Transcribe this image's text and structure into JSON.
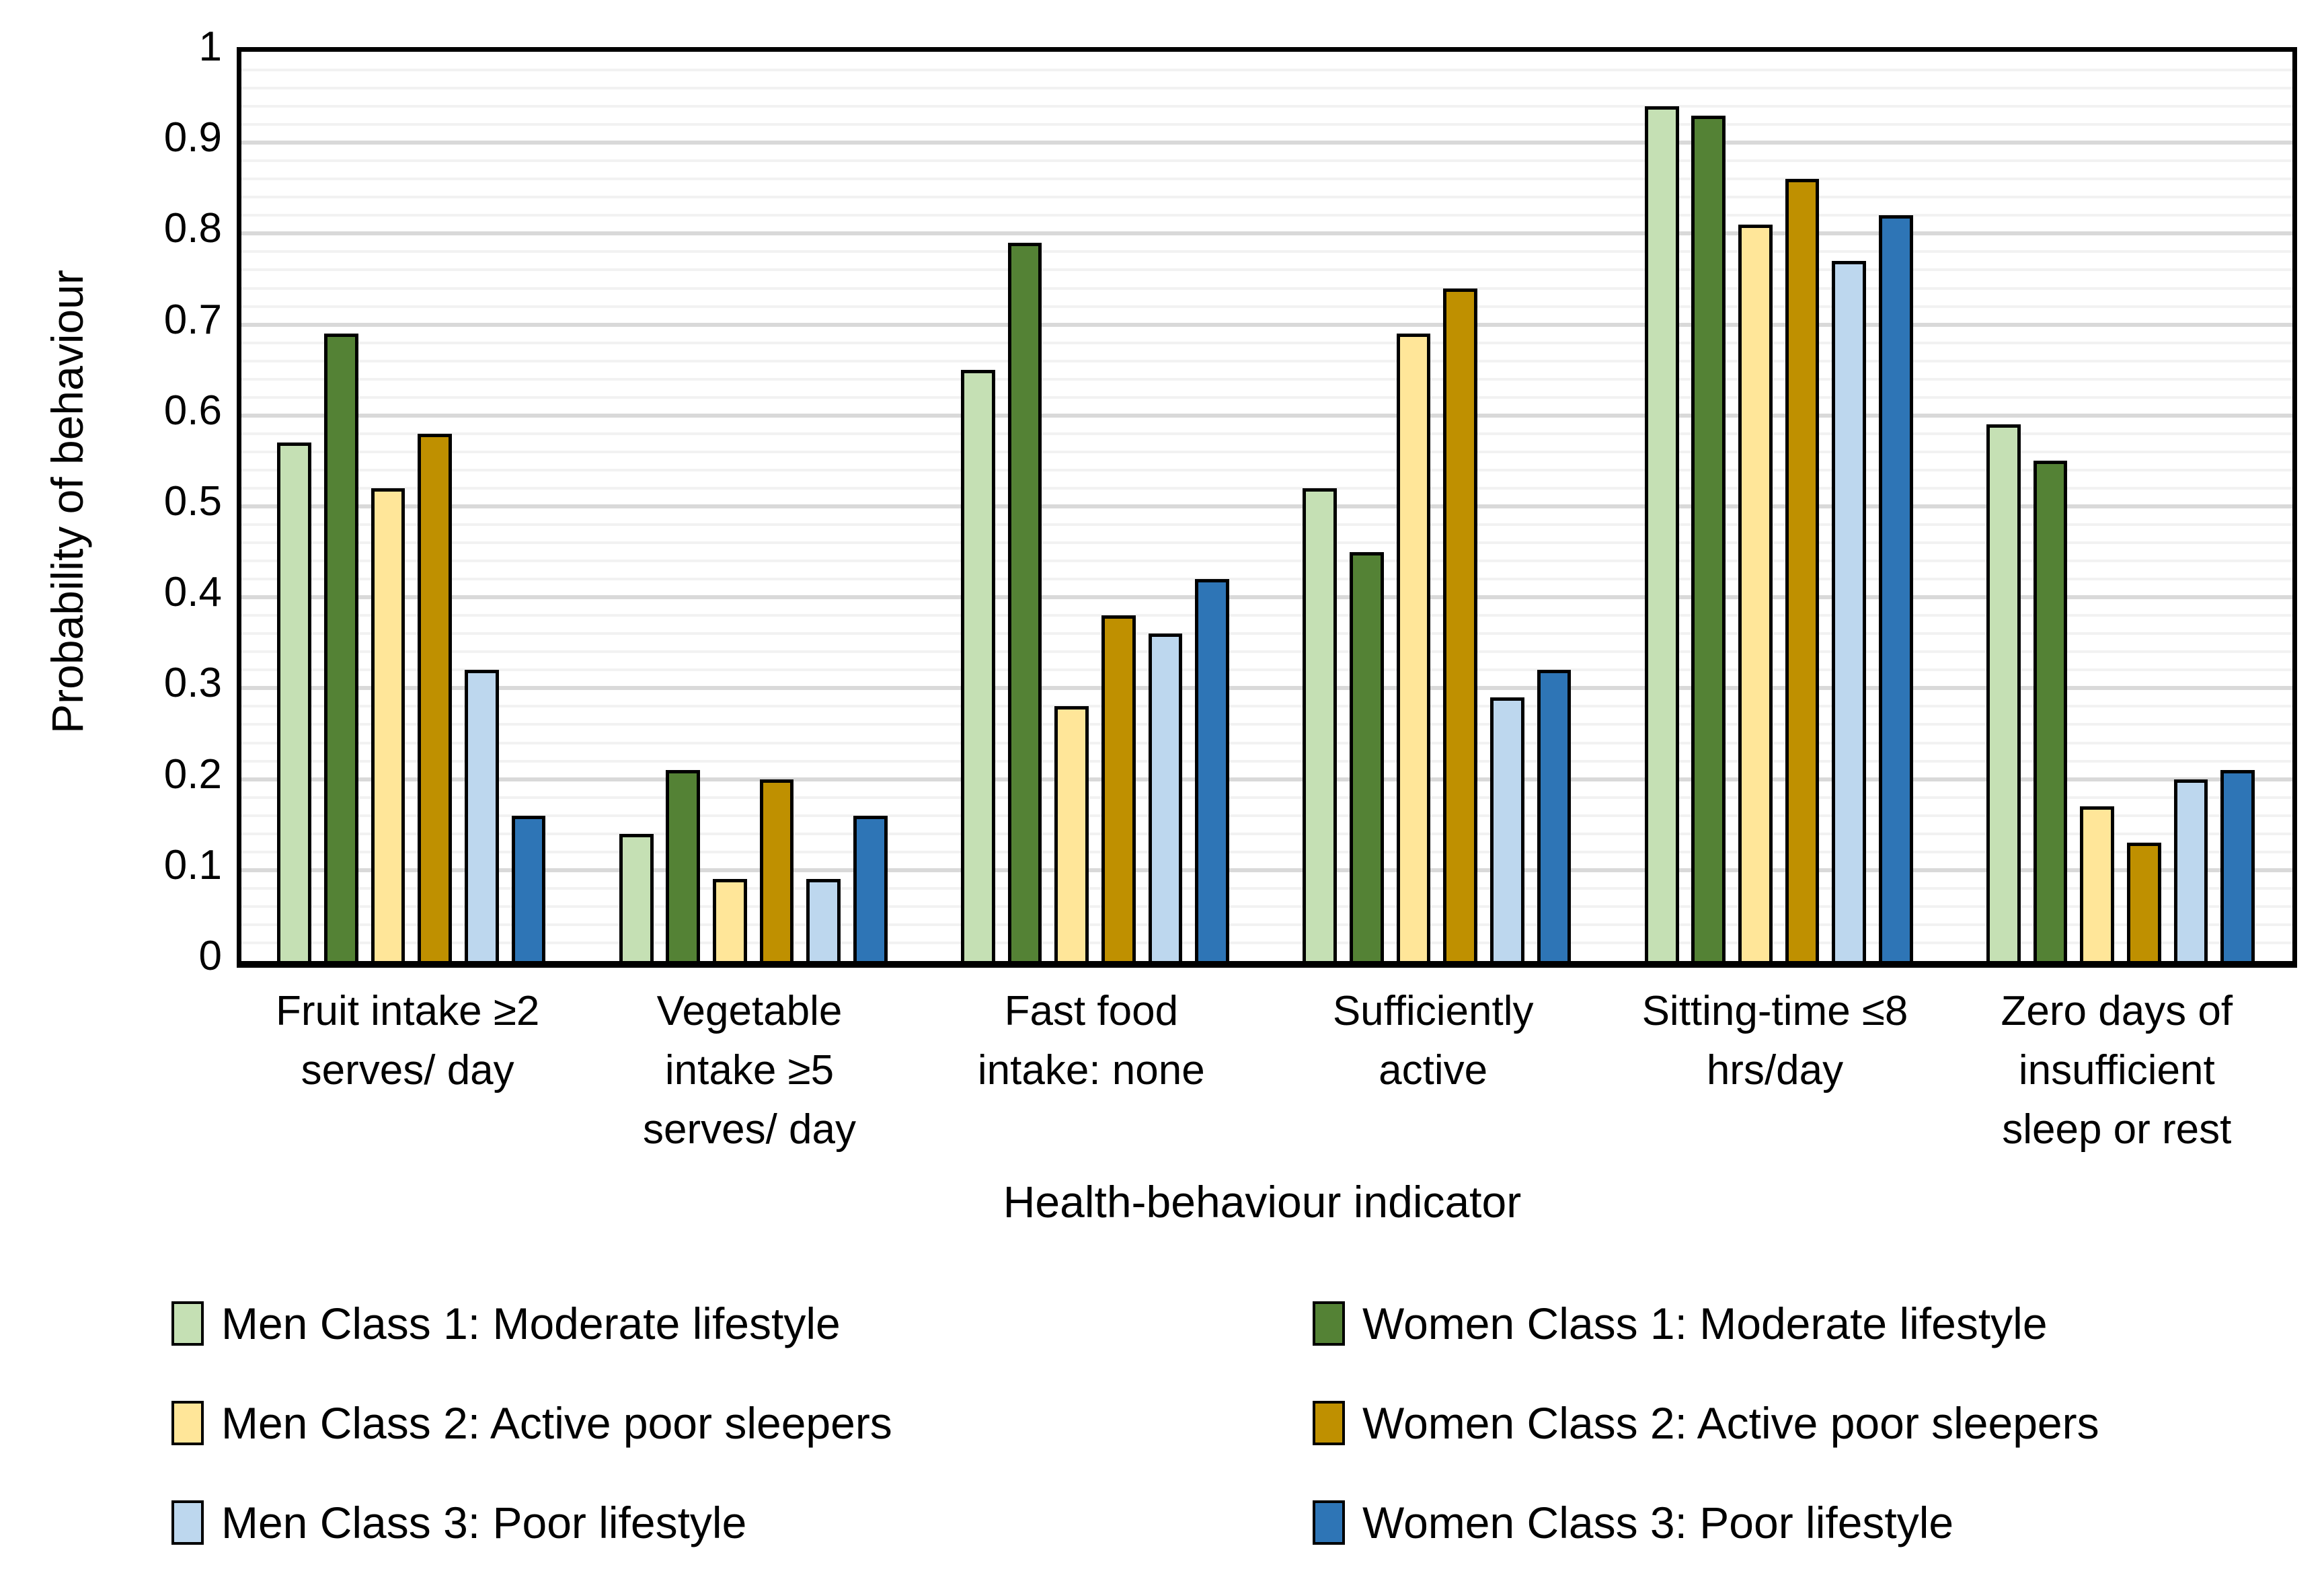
{
  "chart_data": {
    "type": "bar",
    "title": "",
    "xlabel": "Health-behaviour indicator",
    "ylabel": "Probability of behaviour",
    "ylim": [
      0,
      1
    ],
    "ytick_step": 0.1,
    "minor_gridline_step": 0.02,
    "grid": "on",
    "legend_position": "bottom, two columns (Men left, Women right)",
    "y_ticks": [
      "1",
      "0.9",
      "0.8",
      "0.7",
      "0.6",
      "0.5",
      "0.4",
      "0.3",
      "0.2",
      "0.1",
      "0"
    ],
    "categories": [
      {
        "label": "Fruit intake ≥2 serves/ day",
        "lines": [
          "Fruit intake ≥2",
          "serves/ day"
        ]
      },
      {
        "label": "Vegetable intake ≥5 serves/ day",
        "lines": [
          "Vegetable",
          "intake ≥5",
          "serves/ day"
        ]
      },
      {
        "label": "Fast food intake: none",
        "lines": [
          "Fast food",
          "intake: none"
        ]
      },
      {
        "label": "Sufficiently active",
        "lines": [
          "Sufficiently",
          "active"
        ]
      },
      {
        "label": "Sitting-time ≤8 hrs/day",
        "lines": [
          "Sitting-time ≤8",
          "hrs/day"
        ]
      },
      {
        "label": "Zero days of insufficient sleep or rest",
        "lines": [
          "Zero days of",
          "insufficient",
          "sleep or rest"
        ]
      }
    ],
    "series": [
      {
        "name": "Men Class 1: Moderate lifestyle",
        "color": "#C5E0B4",
        "values": [
          0.57,
          0.14,
          0.65,
          0.52,
          0.94,
          0.59
        ]
      },
      {
        "name": "Women Class 1: Moderate lifestyle",
        "color": "#548235",
        "values": [
          0.69,
          0.21,
          0.79,
          0.45,
          0.93,
          0.55
        ]
      },
      {
        "name": "Men Class 2: Active poor sleepers",
        "color": "#FFE699",
        "values": [
          0.52,
          0.09,
          0.28,
          0.69,
          0.81,
          0.17
        ]
      },
      {
        "name": "Women Class 2: Active poor sleepers",
        "color": "#BF9000",
        "values": [
          0.58,
          0.2,
          0.38,
          0.74,
          0.86,
          0.13
        ]
      },
      {
        "name": "Men Class 3: Poor lifestyle",
        "color": "#BDD7EE",
        "values": [
          0.32,
          0.09,
          0.36,
          0.29,
          0.77,
          0.2
        ]
      },
      {
        "name": "Women Class 3: Poor lifestyle",
        "color": "#2E75B6",
        "values": [
          0.16,
          0.16,
          0.42,
          0.32,
          0.82,
          0.21
        ]
      }
    ],
    "colors": {
      "bar_border": "#000000",
      "axis_line": "#000000",
      "major_gridline": "#D9D9D9",
      "minor_gridline": "#F2F2F2",
      "background": "#FFFFFF"
    }
  },
  "axes": {
    "y_title": "Probability of behaviour",
    "x_title": "Health-behaviour indicator"
  }
}
